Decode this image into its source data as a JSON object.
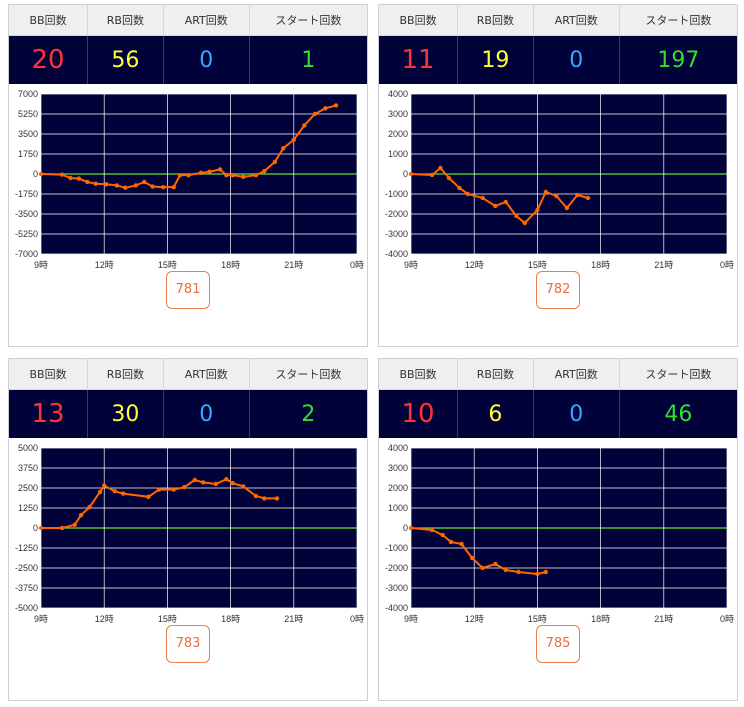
{
  "headers": {
    "bb": "BB回数",
    "rb": "RB回数",
    "art": "ART回数",
    "start": "スタート回数"
  },
  "colors": {
    "bb": "#ff3333",
    "rb": "#ffff33",
    "art": "#33aaff",
    "start": "#33dd33",
    "line": "#ff6600",
    "zero": "#66dd33",
    "plot_bg": "#02023a"
  },
  "machines": [
    {
      "bb": "20",
      "rb": "56",
      "art": "0",
      "start": "1",
      "number": "781"
    },
    {
      "bb": "11",
      "rb": "19",
      "art": "0",
      "start": "197",
      "number": "782"
    },
    {
      "bb": "13",
      "rb": "30",
      "art": "0",
      "start": "2",
      "number": "783"
    },
    {
      "bb": "10",
      "rb": "6",
      "art": "0",
      "start": "46",
      "number": "785"
    }
  ],
  "chart_data": [
    {
      "type": "line",
      "x_ticks": [
        "9時",
        "12時",
        "15時",
        "18時",
        "21時",
        "0時"
      ],
      "y_ticks": [
        "7000",
        "5250",
        "3500",
        "1750",
        "0",
        "-1750",
        "-3500",
        "-5250",
        "-7000"
      ],
      "ylim": [
        -7000,
        7000
      ],
      "xlim": [
        9,
        24
      ],
      "grid": true,
      "x": [
        9.0,
        10.0,
        10.4,
        10.8,
        11.2,
        11.6,
        12.1,
        12.6,
        13.0,
        13.5,
        13.9,
        14.3,
        14.8,
        15.3,
        15.6,
        16.0,
        16.6,
        17.0,
        17.5,
        17.8,
        18.1,
        18.6,
        19.2,
        19.6,
        20.1,
        20.5,
        21.0,
        21.5,
        22.0,
        22.5,
        23.0
      ],
      "y": [
        0,
        -50,
        -350,
        -400,
        -700,
        -850,
        -900,
        -1000,
        -1200,
        -1000,
        -700,
        -1100,
        -1150,
        -1150,
        -100,
        -100,
        100,
        200,
        400,
        -100,
        -100,
        -250,
        -100,
        250,
        1050,
        2250,
        3000,
        4250,
        5250,
        5750,
        6000
      ]
    },
    {
      "type": "line",
      "x_ticks": [
        "9時",
        "12時",
        "15時",
        "18時",
        "21時",
        "0時"
      ],
      "y_ticks": [
        "4000",
        "3000",
        "2000",
        "1000",
        "0",
        "-1000",
        "-2000",
        "-3000",
        "-4000"
      ],
      "ylim": [
        -4000,
        4000
      ],
      "xlim": [
        9,
        24
      ],
      "grid": true,
      "x": [
        9.0,
        10.0,
        10.4,
        10.8,
        11.3,
        11.7,
        12.4,
        13.0,
        13.5,
        14.0,
        14.4,
        15.0,
        15.4,
        15.9,
        16.4,
        16.9,
        17.4
      ],
      "y": [
        0,
        -50,
        300,
        -200,
        -700,
        -1000,
        -1200,
        -1600,
        -1400,
        -2100,
        -2450,
        -1800,
        -900,
        -1100,
        -1700,
        -1050,
        -1200
      ]
    },
    {
      "type": "line",
      "x_ticks": [
        "9時",
        "12時",
        "15時",
        "18時",
        "21時",
        "0時"
      ],
      "y_ticks": [
        "5000",
        "3750",
        "2500",
        "1250",
        "0",
        "-1250",
        "-2500",
        "-3750",
        "-5000"
      ],
      "ylim": [
        -5000,
        5000
      ],
      "xlim": [
        9,
        24
      ],
      "grid": true,
      "x": [
        9.0,
        10.0,
        10.6,
        10.9,
        11.3,
        11.8,
        12.0,
        12.5,
        12.9,
        14.1,
        14.6,
        15.3,
        15.8,
        16.3,
        16.7,
        17.3,
        17.8,
        18.1,
        18.6,
        19.2,
        19.6,
        20.2
      ],
      "y": [
        0,
        0,
        200,
        800,
        1300,
        2250,
        2650,
        2300,
        2150,
        1950,
        2400,
        2400,
        2550,
        3000,
        2850,
        2750,
        3050,
        2800,
        2600,
        2000,
        1850,
        1850
      ]
    },
    {
      "type": "line",
      "x_ticks": [
        "9時",
        "12時",
        "15時",
        "18時",
        "21時",
        "0時"
      ],
      "y_ticks": [
        "4000",
        "3000",
        "2000",
        "1000",
        "0",
        "-1000",
        "-2000",
        "-3000",
        "-4000"
      ],
      "ylim": [
        -4000,
        4000
      ],
      "xlim": [
        9,
        24
      ],
      "grid": true,
      "x": [
        9.0,
        10.0,
        10.5,
        10.9,
        11.4,
        11.9,
        12.4,
        13.0,
        13.5,
        14.1,
        15.0,
        15.4
      ],
      "y": [
        0,
        -100,
        -350,
        -700,
        -800,
        -1500,
        -2000,
        -1800,
        -2100,
        -2200,
        -2300,
        -2200
      ]
    }
  ]
}
